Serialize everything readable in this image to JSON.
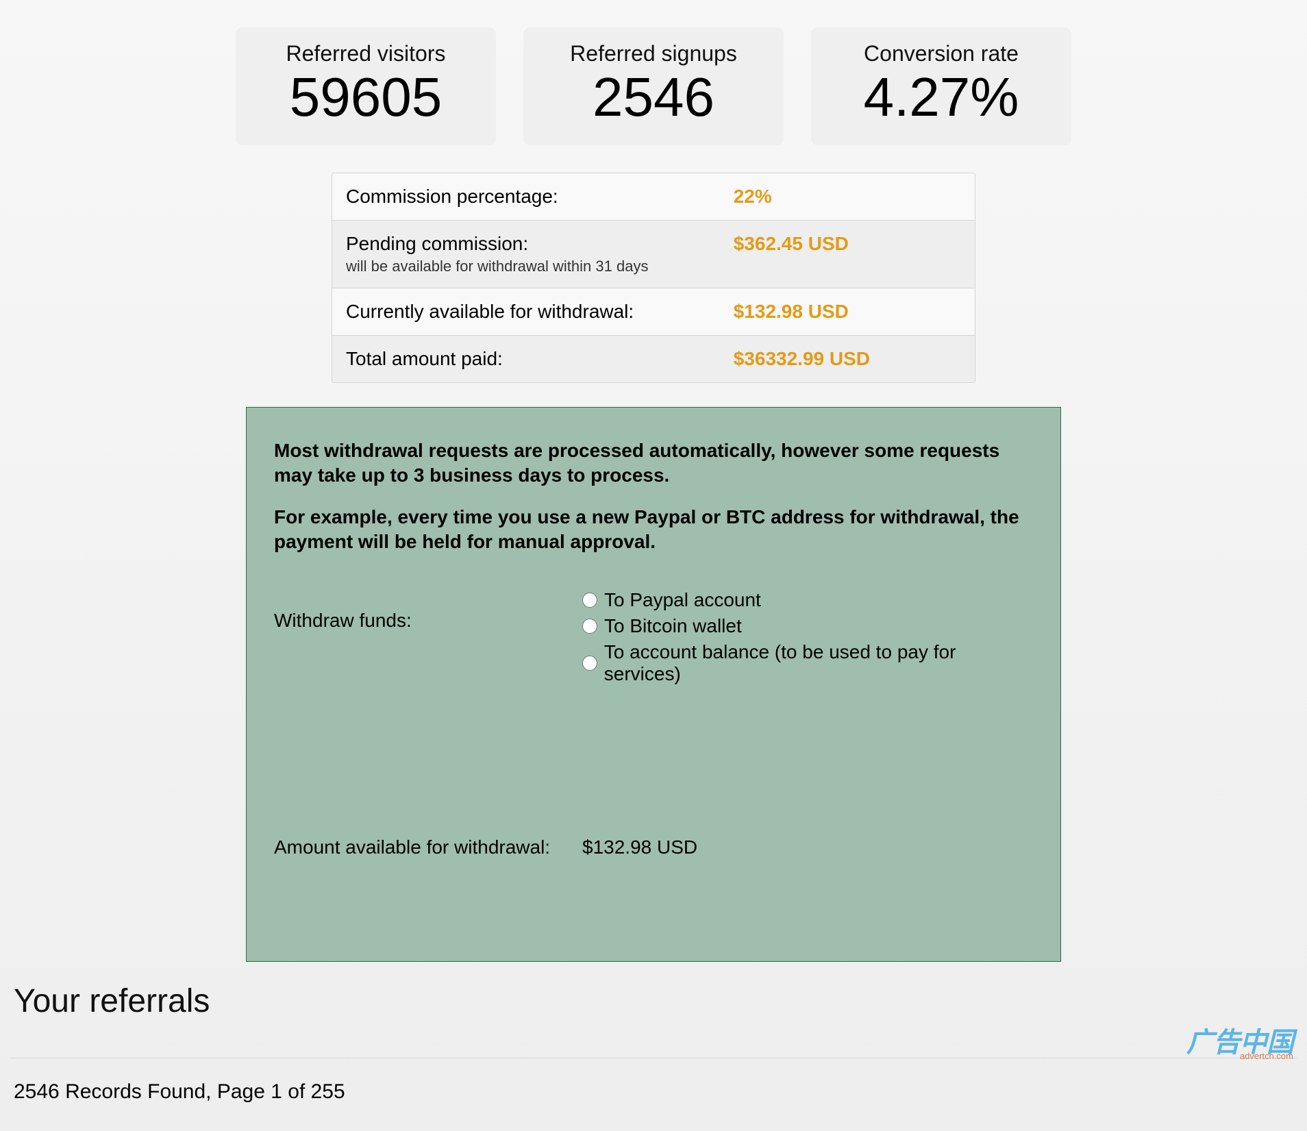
{
  "stats": [
    {
      "label": "Referred visitors",
      "value": "59605"
    },
    {
      "label": "Referred signups",
      "value": "2546"
    },
    {
      "label": "Conversion rate",
      "value": "4.27%"
    }
  ],
  "commission": {
    "rows": [
      {
        "label": "Commission percentage:",
        "sublabel": "",
        "value": "22%"
      },
      {
        "label": "Pending commission:",
        "sublabel": "will be available for withdrawal within 31 days",
        "value": "$362.45 USD"
      },
      {
        "label": "Currently available for withdrawal:",
        "sublabel": "",
        "value": "$132.98 USD"
      },
      {
        "label": "Total amount paid:",
        "sublabel": "",
        "value": "$36332.99 USD"
      }
    ],
    "value_color": "#e39b16"
  },
  "withdrawal": {
    "notice1": "Most withdrawal requests are processed automatically, however some requests may take up to 3 business days to process.",
    "notice2": "For example, every time you use a new Paypal or BTC address for withdrawal, the payment will be held for manual approval.",
    "form_label": "Withdraw funds:",
    "options": [
      "To Paypal account",
      "To Bitcoin wallet",
      "To account balance (to be used to pay for services)"
    ],
    "amount_label": "Amount available for withdrawal:",
    "amount_value": "$132.98 USD",
    "panel_bg": "#9fbead",
    "panel_border": "#2f6b47"
  },
  "referrals": {
    "heading": "Your referrals",
    "records_line": "2546 Records Found, Page 1 of 255"
  },
  "watermark": {
    "main": "广告中国",
    "sub": "advertcn.com"
  }
}
